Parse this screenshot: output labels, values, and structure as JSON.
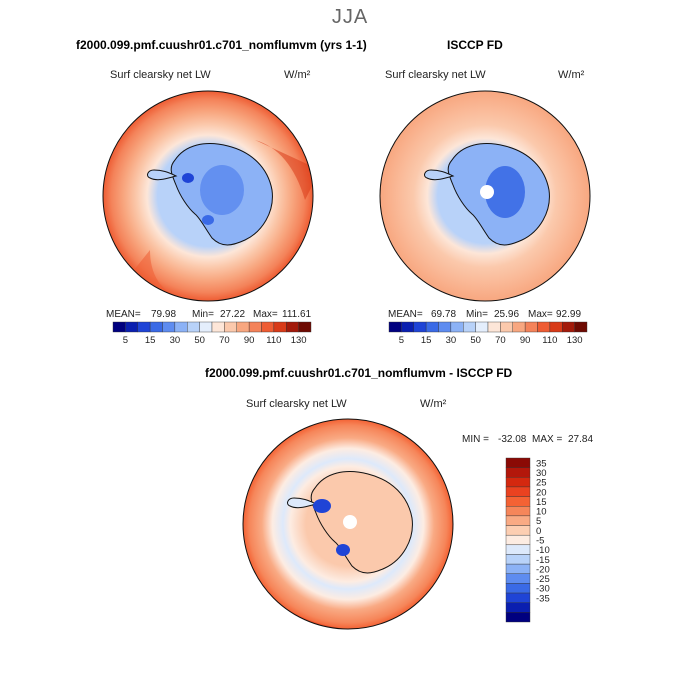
{
  "season": "JJA",
  "panels": [
    {
      "title": "f2000.099.pmf.cuushr01.c701_nomflumvm (yrs 1-1)",
      "variable": "Surf clearsky net LW",
      "units": "W/m²",
      "stats": {
        "mean_label": "MEAN=",
        "mean": "79.98",
        "min_label": "Min=",
        "min": "27.22",
        "max_label": "Max=",
        "max": "111.61"
      }
    },
    {
      "title": "ISCCP FD",
      "variable": "Surf clearsky net LW",
      "units": "W/m²",
      "stats": {
        "mean_label": "MEAN=",
        "mean": "69.78",
        "min_label": "Min=",
        "min": "25.96",
        "max_label": "Max=",
        "max": "92.99"
      }
    },
    {
      "title": "f2000.099.pmf.cuushr01.c701_nomflumvm - ISCCP FD",
      "variable": "Surf clearsky net LW",
      "units": "W/m²",
      "stats": {
        "min_label": "MIN =",
        "min": "-32.08",
        "max_label": "MAX =",
        "max": "27.84"
      }
    }
  ],
  "chart_data": [
    {
      "type": "heatmap",
      "projection": "south-polar-stereographic",
      "title": "f2000.099.pmf.cuushr01.c701_nomflumvm (yrs 1-1)",
      "variable": "Surf clearsky net LW",
      "units": "W/m²",
      "mean": 79.98,
      "min": 27.22,
      "max": 111.61,
      "colorbar_levels": [
        5,
        10,
        15,
        20,
        30,
        40,
        50,
        60,
        70,
        80,
        90,
        100,
        110,
        120,
        130
      ],
      "colorbar_tick_labels": [
        "5",
        "15",
        "30",
        "50",
        "70",
        "90",
        "110",
        "130"
      ],
      "colors": [
        "#00007f",
        "#0a1fb0",
        "#1f44d6",
        "#3a6ae6",
        "#5e8cf0",
        "#8cb2f6",
        "#b8d2f9",
        "#e4eefc",
        "#fde6d8",
        "#fbc9ac",
        "#f8a780",
        "#f4835a",
        "#ee5c33",
        "#d83a18",
        "#a31a0a",
        "#6e0a02"
      ]
    },
    {
      "type": "heatmap",
      "projection": "south-polar-stereographic",
      "title": "ISCCP FD",
      "variable": "Surf clearsky net LW",
      "units": "W/m²",
      "mean": 69.78,
      "min": 25.96,
      "max": 92.99,
      "colorbar_levels": [
        5,
        10,
        15,
        20,
        30,
        40,
        50,
        60,
        70,
        80,
        90,
        100,
        110,
        120,
        130
      ],
      "colorbar_tick_labels": [
        "5",
        "15",
        "30",
        "50",
        "70",
        "90",
        "110",
        "130"
      ],
      "colors": [
        "#00007f",
        "#0a1fb0",
        "#1f44d6",
        "#3a6ae6",
        "#5e8cf0",
        "#8cb2f6",
        "#b8d2f9",
        "#e4eefc",
        "#fde6d8",
        "#fbc9ac",
        "#f8a780",
        "#f4835a",
        "#ee5c33",
        "#d83a18",
        "#a31a0a",
        "#6e0a02"
      ]
    },
    {
      "type": "heatmap",
      "projection": "south-polar-stereographic",
      "title": "f2000.099.pmf.cuushr01.c701_nomflumvm - ISCCP FD",
      "variable": "Surf clearsky net LW",
      "units": "W/m²",
      "min": -32.08,
      "max": 27.84,
      "colorbar_orientation": "vertical",
      "colorbar_levels": [
        35,
        30,
        25,
        20,
        15,
        10,
        5,
        0,
        -5,
        -10,
        -15,
        -20,
        -25,
        -30,
        -35
      ],
      "colorbar_tick_labels": [
        "35",
        "30",
        "25",
        "20",
        "15",
        "10",
        "5",
        "0",
        "-5",
        "-10",
        "-15",
        "-20",
        "-25",
        "-30",
        "-35"
      ],
      "colors": [
        "#8b0a05",
        "#b3170b",
        "#d4280f",
        "#ea4220",
        "#f46234",
        "#f6865a",
        "#f9aa84",
        "#fcceb2",
        "#fdece2",
        "#dde9fb",
        "#b8d2f9",
        "#8cb2f6",
        "#5e8cf0",
        "#3a6ae6",
        "#1f44d6",
        "#0a1fb0",
        "#00007f"
      ]
    }
  ]
}
